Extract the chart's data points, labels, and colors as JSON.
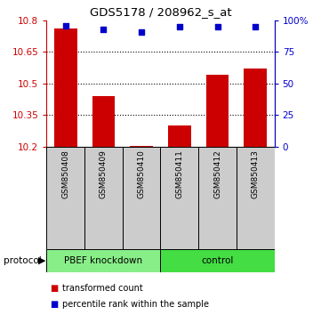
{
  "title": "GDS5178 / 208962_s_at",
  "samples": [
    "GSM850408",
    "GSM850409",
    "GSM850410",
    "GSM850411",
    "GSM850412",
    "GSM850413"
  ],
  "bar_values": [
    10.76,
    10.44,
    10.201,
    10.3,
    10.54,
    10.57
  ],
  "percentile_values": [
    96,
    93,
    91,
    95,
    95,
    95
  ],
  "ylim_left": [
    10.2,
    10.8
  ],
  "ylim_right": [
    0,
    100
  ],
  "yticks_left": [
    10.2,
    10.35,
    10.5,
    10.65,
    10.8
  ],
  "yticks_right": [
    0,
    25,
    50,
    75,
    100
  ],
  "ytick_labels_left": [
    "10.2",
    "10.35",
    "10.5",
    "10.65",
    "10.8"
  ],
  "ytick_labels_right": [
    "0",
    "25",
    "50",
    "75",
    "100%"
  ],
  "bar_color": "#cc0000",
  "scatter_color": "#0000cc",
  "groups": [
    {
      "label": "PBEF knockdown",
      "indices": [
        0,
        1,
        2
      ],
      "color": "#88ee88"
    },
    {
      "label": "control",
      "indices": [
        3,
        4,
        5
      ],
      "color": "#44dd44"
    }
  ],
  "protocol_label": "protocol",
  "legend_items": [
    {
      "label": "transformed count",
      "color": "#cc0000"
    },
    {
      "label": "percentile rank within the sample",
      "color": "#0000cc"
    }
  ],
  "bg_color": "#ffffff",
  "bar_width": 0.6,
  "sample_box_color": "#cccccc",
  "sample_box_edge": "#000000"
}
